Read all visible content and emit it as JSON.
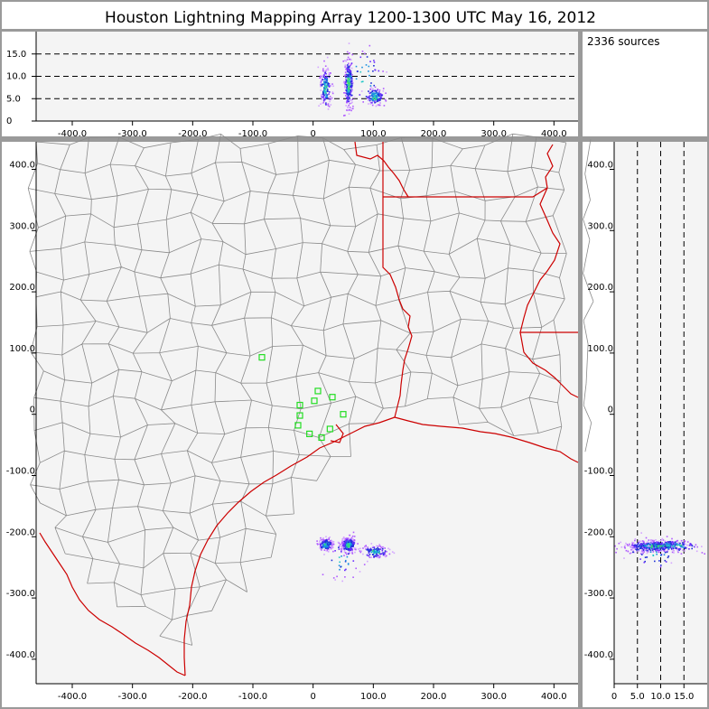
{
  "title": "Houston Lightning Mapping Array   1200-1300 UTC  May 16, 2012",
  "source_count": "2336 sources",
  "colors": {
    "frame": "#9a9a9a",
    "panel_bg": "#f4f4f4",
    "county": "#8a8a8a",
    "state": "#cc0000",
    "station": "#22dd22",
    "density": [
      "#d4a6ff",
      "#b05cff",
      "#6a2cff",
      "#2030d8",
      "#1a8fe0",
      "#22c8c8",
      "#3cdc6c"
    ]
  },
  "chart_data": [
    {
      "type": "scatter",
      "panel": "altitude-vs-east-west",
      "xlim": [
        -460,
        440
      ],
      "ylim": [
        0,
        20
      ],
      "xticks": [
        "-400.0",
        "-300.0",
        "-200.0",
        "-100.0",
        "0",
        "100.0",
        "200.0",
        "300.0",
        "400.0"
      ],
      "yticks": [
        "0",
        "5.0",
        "10.0",
        "15.0"
      ],
      "grid_lines_y": [
        5,
        10,
        15
      ],
      "clusters": [
        {
          "x": 20,
          "y": 7.5,
          "sx": 5,
          "sy": 2.3,
          "n": 170,
          "core": 0.35
        },
        {
          "x": 58,
          "y": 8.5,
          "sx": 3.5,
          "sy": 2.8,
          "n": 260,
          "core": 0.7
        },
        {
          "x": 102,
          "y": 5.6,
          "sx": 8,
          "sy": 1.0,
          "n": 130,
          "core": 0.3
        },
        {
          "x": 80,
          "y": 10,
          "sx": 20,
          "sy": 3,
          "n": 40,
          "core": 0.0
        }
      ]
    },
    {
      "type": "scatter",
      "panel": "plan-view",
      "xlim": [
        -460,
        440
      ],
      "ylim": [
        -440,
        445
      ],
      "xticks": [
        "-400.0",
        "-300.0",
        "-200.0",
        "-100.0",
        "0",
        "100.0",
        "200.0",
        "300.0",
        "400.0"
      ],
      "yticks": [
        "400.0",
        "300.0",
        "200.0",
        "100.0",
        "0",
        "-100.0",
        "-200.0",
        "-300.0",
        "-400.0"
      ],
      "stations": [
        [
          -85,
          93
        ],
        [
          -22,
          15
        ],
        [
          2,
          22
        ],
        [
          8,
          38
        ],
        [
          32,
          28
        ],
        [
          -22,
          -2
        ],
        [
          -25,
          -18
        ],
        [
          -6,
          -32
        ],
        [
          14,
          -38
        ],
        [
          28,
          -24
        ],
        [
          50,
          0
        ]
      ],
      "clusters": [
        {
          "x": 20,
          "y": -212,
          "sx": 6,
          "sy": 5,
          "n": 170,
          "core": 0.35
        },
        {
          "x": 58,
          "y": -212,
          "sx": 6,
          "sy": 6,
          "n": 260,
          "core": 0.7
        },
        {
          "x": 102,
          "y": -224,
          "sx": 11,
          "sy": 5,
          "n": 130,
          "core": 0.3
        },
        {
          "x": 45,
          "y": -238,
          "sx": 15,
          "sy": 15,
          "n": 35,
          "core": 0.0
        }
      ]
    },
    {
      "type": "scatter",
      "panel": "north-south-vs-altitude",
      "xlim": [
        0,
        20
      ],
      "ylim": [
        -440,
        445
      ],
      "xticks": [
        "0",
        "5.0",
        "10.0",
        "15.0"
      ],
      "yticks": [
        "400.0",
        "300.0",
        "200.0",
        "100.0",
        "0",
        "-100.0",
        "-200.0",
        "-300.0",
        "-400.0"
      ],
      "grid_lines_x": [
        5,
        10,
        15
      ],
      "clusters": [
        {
          "x": 7.5,
          "y": -215,
          "sx": 2.5,
          "sy": 5,
          "n": 200,
          "core": 0.35
        },
        {
          "x": 9.0,
          "y": -214,
          "sx": 3.2,
          "sy": 4,
          "n": 230,
          "core": 0.6
        },
        {
          "x": 12.5,
          "y": -214,
          "sx": 3.0,
          "sy": 5,
          "n": 110,
          "core": 0.1
        },
        {
          "x": 8,
          "y": -226,
          "sx": 3,
          "sy": 14,
          "n": 50,
          "core": 0.0
        }
      ]
    }
  ]
}
